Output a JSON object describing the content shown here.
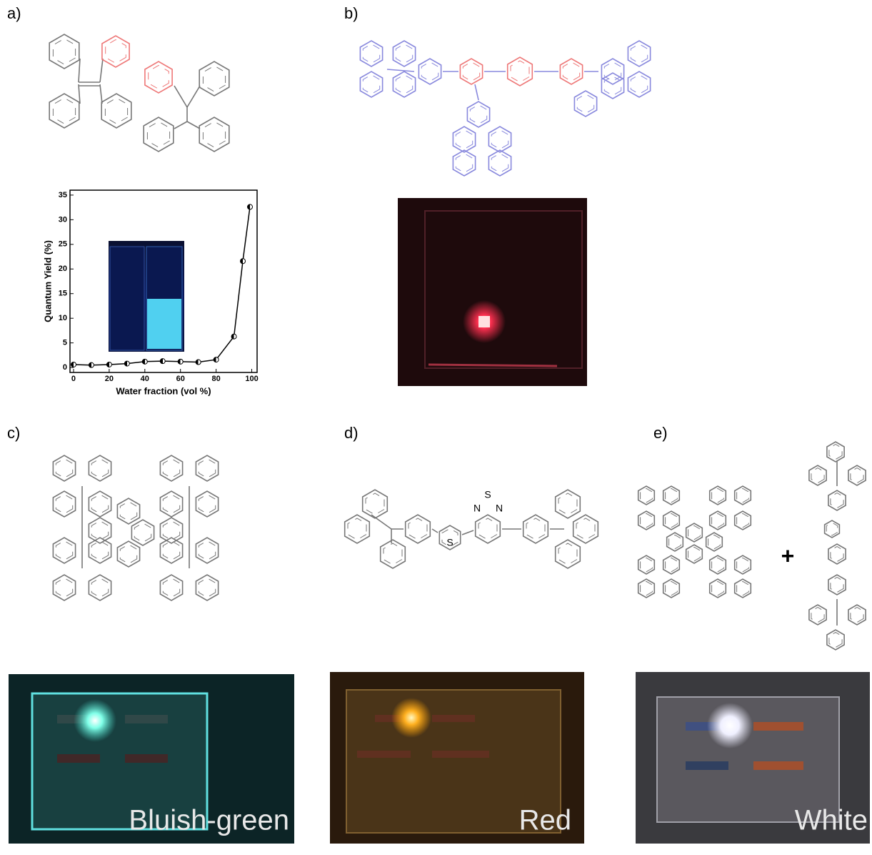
{
  "panels": {
    "a": "a)",
    "b": "b)",
    "c": "c)",
    "d": "d)",
    "e": "e)"
  },
  "chart_data": {
    "type": "line",
    "xlabel": "Water fraction (vol %)",
    "ylabel": "Quantum Yield (%)",
    "x": [
      0,
      10,
      20,
      30,
      40,
      50,
      60,
      70,
      80,
      90,
      95,
      99
    ],
    "series": [
      {
        "color": "#000000",
        "values": [
          0.6,
          0.5,
          0.6,
          0.8,
          1.2,
          1.3,
          1.2,
          1.1,
          1.6,
          6.3,
          21.6,
          32.6
        ]
      }
    ],
    "xlim": [
      -2,
      103
    ],
    "xticks": [
      0,
      20,
      40,
      60,
      80,
      100
    ],
    "ylim": [
      -1,
      36
    ],
    "yticks": [
      0,
      5,
      10,
      15,
      20,
      25,
      30,
      35
    ]
  },
  "molecules": {
    "d": {
      "atoms": [
        "S",
        "N",
        "S",
        "N"
      ]
    },
    "e": {
      "plus": "+"
    }
  },
  "photos": {
    "captions": [
      "Bluish-green",
      "Red",
      "White"
    ]
  }
}
